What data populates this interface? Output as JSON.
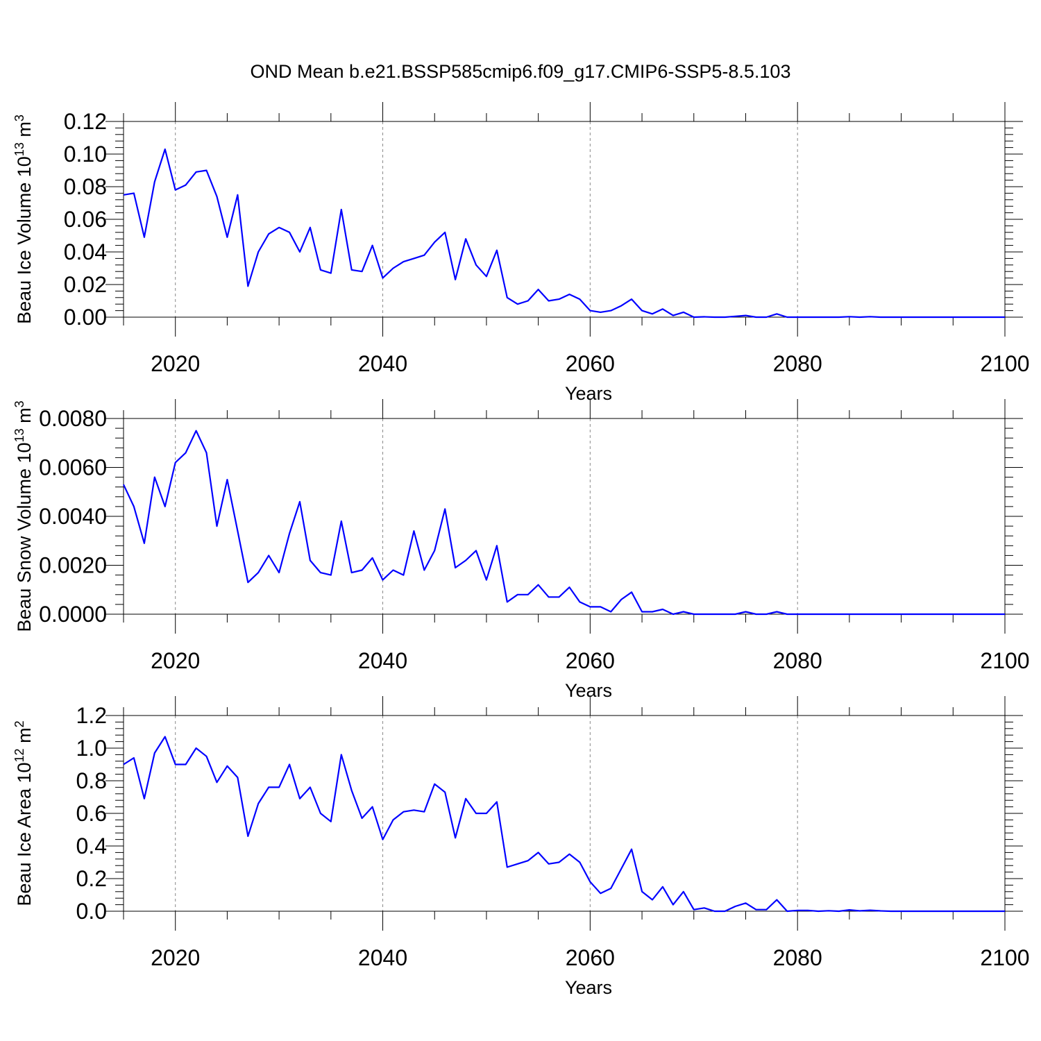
{
  "title": "OND Mean b.e21.BSSP585cmip6.f09_g17.CMIP6-SSP5-8.5.103",
  "line_color": "#0000ff",
  "chart_data": [
    {
      "type": "line",
      "title": "",
      "xlabel": "Years",
      "ylabel_main": "Beau Ice Volume 10",
      "ylabel_exp": "13",
      "ylabel_unit": "m",
      "ylabel_unit_exp": "3",
      "xlim": [
        2015,
        2100
      ],
      "ylim": [
        0,
        0.12
      ],
      "xticks": [
        2020,
        2040,
        2060,
        2080,
        2100
      ],
      "xtick_labels": [
        "2020",
        "2040",
        "2060",
        "2080",
        "2100"
      ],
      "yticks": [
        0,
        0.02,
        0.04,
        0.06,
        0.08,
        0.1,
        0.12
      ],
      "ytick_labels": [
        "0.00",
        "0.02",
        "0.04",
        "0.06",
        "0.08",
        "0.10",
        "0.12"
      ],
      "x_start": 2015,
      "values": [
        0.075,
        0.076,
        0.049,
        0.083,
        0.103,
        0.078,
        0.081,
        0.089,
        0.09,
        0.074,
        0.049,
        0.075,
        0.019,
        0.04,
        0.051,
        0.055,
        0.052,
        0.04,
        0.055,
        0.029,
        0.027,
        0.066,
        0.029,
        0.028,
        0.044,
        0.024,
        0.03,
        0.034,
        0.036,
        0.038,
        0.046,
        0.052,
        0.023,
        0.048,
        0.032,
        0.025,
        0.041,
        0.012,
        0.008,
        0.01,
        0.017,
        0.01,
        0.011,
        0.014,
        0.011,
        0.004,
        0.003,
        0.004,
        0.007,
        0.011,
        0.004,
        0.002,
        0.005,
        0.001,
        0.003,
        0.0,
        0.0002,
        0.0,
        0.0,
        0.0005,
        0.001,
        0.0,
        0.0,
        0.002,
        0.0,
        0.0,
        0.0,
        0.0,
        0.0,
        0.0,
        0.0003,
        0.0,
        0.0003,
        0.0,
        0.0,
        0.0,
        0.0,
        0.0,
        0.0,
        0.0,
        0.0,
        0.0,
        0.0,
        0.0,
        0.0,
        0.0
      ]
    },
    {
      "type": "line",
      "title": "",
      "xlabel": "Years",
      "ylabel_main": "Beau Snow Volume 10",
      "ylabel_exp": "13",
      "ylabel_unit": "m",
      "ylabel_unit_exp": "3",
      "xlim": [
        2015,
        2100
      ],
      "ylim": [
        0,
        0.008
      ],
      "xticks": [
        2020,
        2040,
        2060,
        2080,
        2100
      ],
      "xtick_labels": [
        "2020",
        "2040",
        "2060",
        "2080",
        "2100"
      ],
      "yticks": [
        0,
        0.002,
        0.004,
        0.006,
        0.008
      ],
      "ytick_labels": [
        "0.0000",
        "0.0020",
        "0.0040",
        "0.0060",
        "0.0080"
      ],
      "x_start": 2015,
      "values": [
        0.0053,
        0.0044,
        0.0029,
        0.0056,
        0.0044,
        0.0062,
        0.0066,
        0.0075,
        0.0066,
        0.0036,
        0.0055,
        0.0034,
        0.0013,
        0.0017,
        0.0024,
        0.0017,
        0.0033,
        0.0046,
        0.0022,
        0.0017,
        0.0016,
        0.0038,
        0.0017,
        0.0018,
        0.0023,
        0.0014,
        0.0018,
        0.0016,
        0.0034,
        0.0018,
        0.0026,
        0.0043,
        0.0019,
        0.0022,
        0.0026,
        0.0014,
        0.0028,
        0.0005,
        0.0008,
        0.0008,
        0.0012,
        0.0007,
        0.0007,
        0.0011,
        0.0005,
        0.0003,
        0.0003,
        0.0001,
        0.0006,
        0.0009,
        0.0001,
        0.0001,
        0.0002,
        0.0,
        0.0001,
        0.0,
        0.0,
        0.0,
        0.0,
        0.0,
        0.0001,
        0.0,
        0.0,
        0.0001,
        0.0,
        0.0,
        0.0,
        0.0,
        0.0,
        0.0,
        0.0,
        0.0,
        0.0,
        0.0,
        0.0,
        0.0,
        0.0,
        0.0,
        0.0,
        0.0,
        0.0,
        0.0,
        0.0,
        0.0,
        0.0,
        0.0
      ]
    },
    {
      "type": "line",
      "title": "",
      "xlabel": "Years",
      "ylabel_main": "Beau Ice Area 10",
      "ylabel_exp": "12",
      "ylabel_unit": "m",
      "ylabel_unit_exp": "2",
      "xlim": [
        2015,
        2100
      ],
      "ylim": [
        0,
        1.2
      ],
      "xticks": [
        2020,
        2040,
        2060,
        2080,
        2100
      ],
      "xtick_labels": [
        "2020",
        "2040",
        "2060",
        "2080",
        "2100"
      ],
      "yticks": [
        0,
        0.2,
        0.4,
        0.6,
        0.8,
        1.0,
        1.2
      ],
      "ytick_labels": [
        "0.0",
        "0.2",
        "0.4",
        "0.6",
        "0.8",
        "1.0",
        "1.2"
      ],
      "x_start": 2015,
      "values": [
        0.9,
        0.94,
        0.69,
        0.97,
        1.07,
        0.9,
        0.9,
        1.0,
        0.95,
        0.79,
        0.89,
        0.82,
        0.46,
        0.66,
        0.76,
        0.76,
        0.9,
        0.69,
        0.76,
        0.6,
        0.55,
        0.96,
        0.74,
        0.57,
        0.64,
        0.44,
        0.56,
        0.61,
        0.62,
        0.61,
        0.78,
        0.73,
        0.45,
        0.69,
        0.6,
        0.6,
        0.67,
        0.27,
        0.29,
        0.31,
        0.36,
        0.29,
        0.3,
        0.35,
        0.3,
        0.18,
        0.11,
        0.14,
        0.26,
        0.38,
        0.12,
        0.07,
        0.15,
        0.04,
        0.12,
        0.01,
        0.02,
        0.0,
        0.0,
        0.03,
        0.05,
        0.01,
        0.01,
        0.07,
        0.0,
        0.005,
        0.005,
        0.0,
        0.003,
        0.0,
        0.008,
        0.002,
        0.006,
        0.002,
        0.0,
        0.0,
        0.0,
        0.0,
        0.0,
        0.0,
        0.0,
        0.0,
        0.0,
        0.0,
        0.0,
        0.0
      ]
    }
  ]
}
